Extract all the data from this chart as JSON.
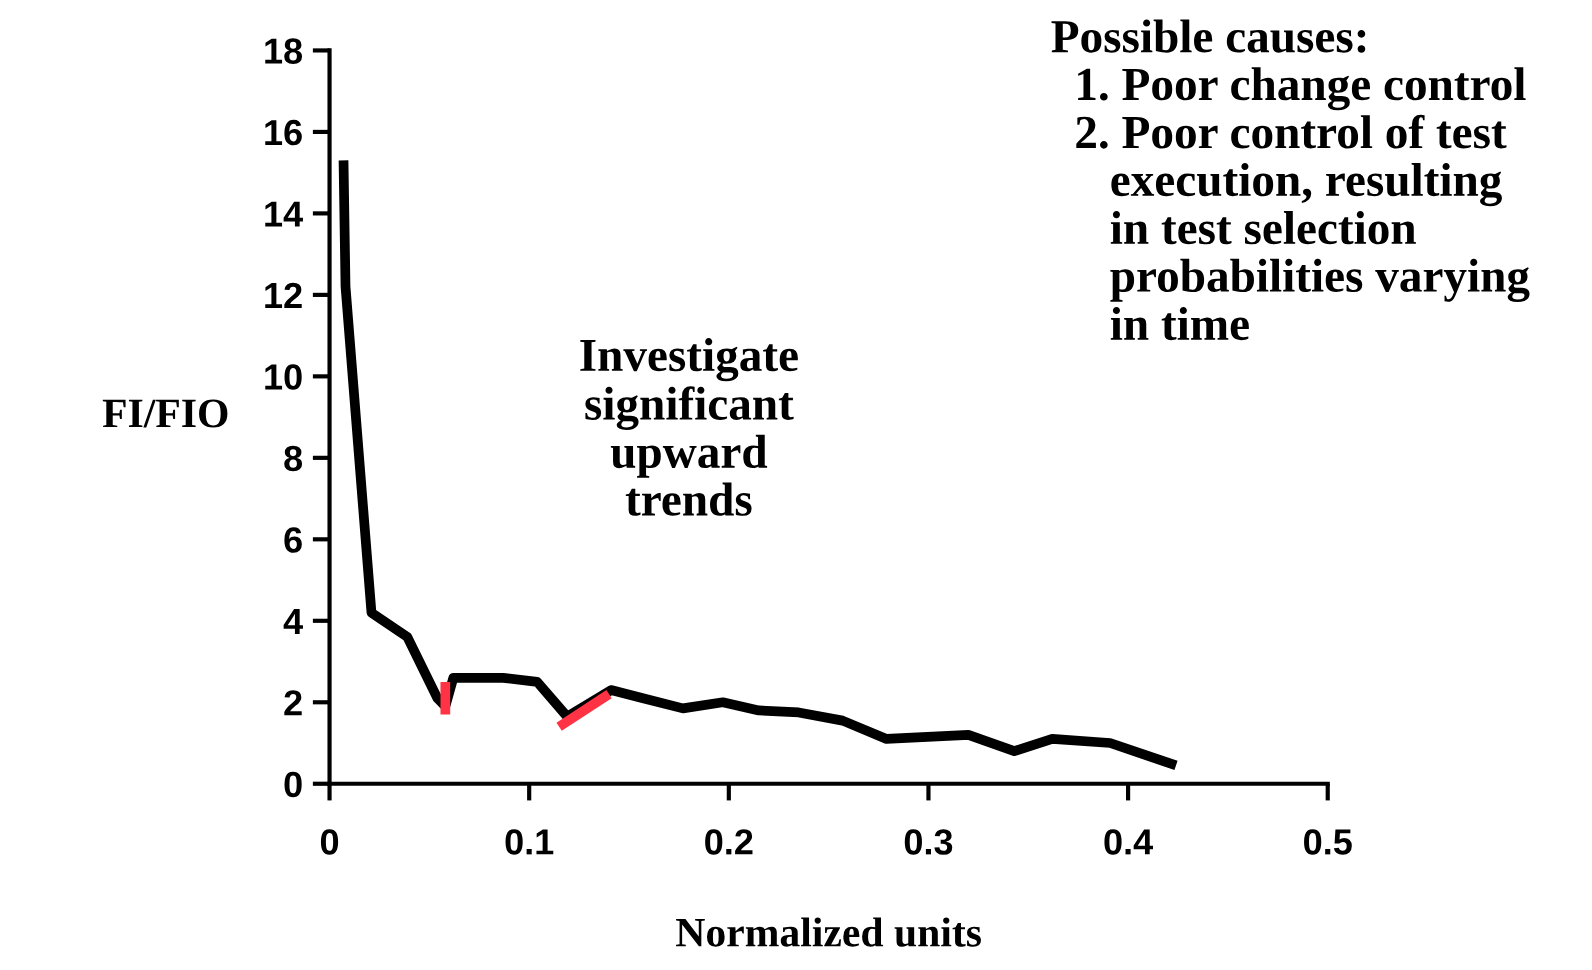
{
  "chart_data": {
    "type": "line",
    "xlabel": "Normalized units",
    "ylabel": "FI/FIO",
    "xlim": [
      0,
      0.5
    ],
    "xticks": [
      0,
      0.1,
      0.2,
      0.3,
      0.4,
      0.5
    ],
    "ylim": [
      0,
      18
    ],
    "yticks": [
      0,
      2,
      4,
      6,
      8,
      10,
      12,
      14,
      16,
      18
    ],
    "grid": false,
    "marker": "none",
    "line_style": "solid",
    "series": [
      {
        "color": "#000000",
        "x": [
          0.007,
          0.008,
          0.021,
          0.039,
          0.054,
          0.058,
          0.062,
          0.087,
          0.104,
          0.119,
          0.141,
          0.157,
          0.177,
          0.197,
          0.215,
          0.235,
          0.257,
          0.279,
          0.32,
          0.343,
          0.362,
          0.391,
          0.424
        ],
        "values": [
          15.3,
          12.2,
          4.2,
          3.6,
          2.1,
          1.9,
          2.6,
          2.6,
          2.5,
          1.65,
          2.3,
          2.1,
          1.85,
          2.0,
          1.8,
          1.75,
          1.55,
          1.1,
          1.2,
          0.8,
          1.1,
          1.0,
          0.45
        ]
      },
      {
        "color": "#ff3344",
        "x": [
          0.058,
          0.058
        ],
        "values": [
          1.7,
          2.5
        ]
      },
      {
        "color": "#ff3344",
        "x": [
          0.115,
          0.14
        ],
        "values": [
          1.4,
          2.2
        ]
      }
    ],
    "annotations": [
      "Investigate\nsignificant\nupward\ntrends",
      "Possible causes:\n  1. Poor change control\n  2. Poor control of test\n     execution, resulting\n     in test selection\n     probabilities varying\n     in time"
    ]
  }
}
